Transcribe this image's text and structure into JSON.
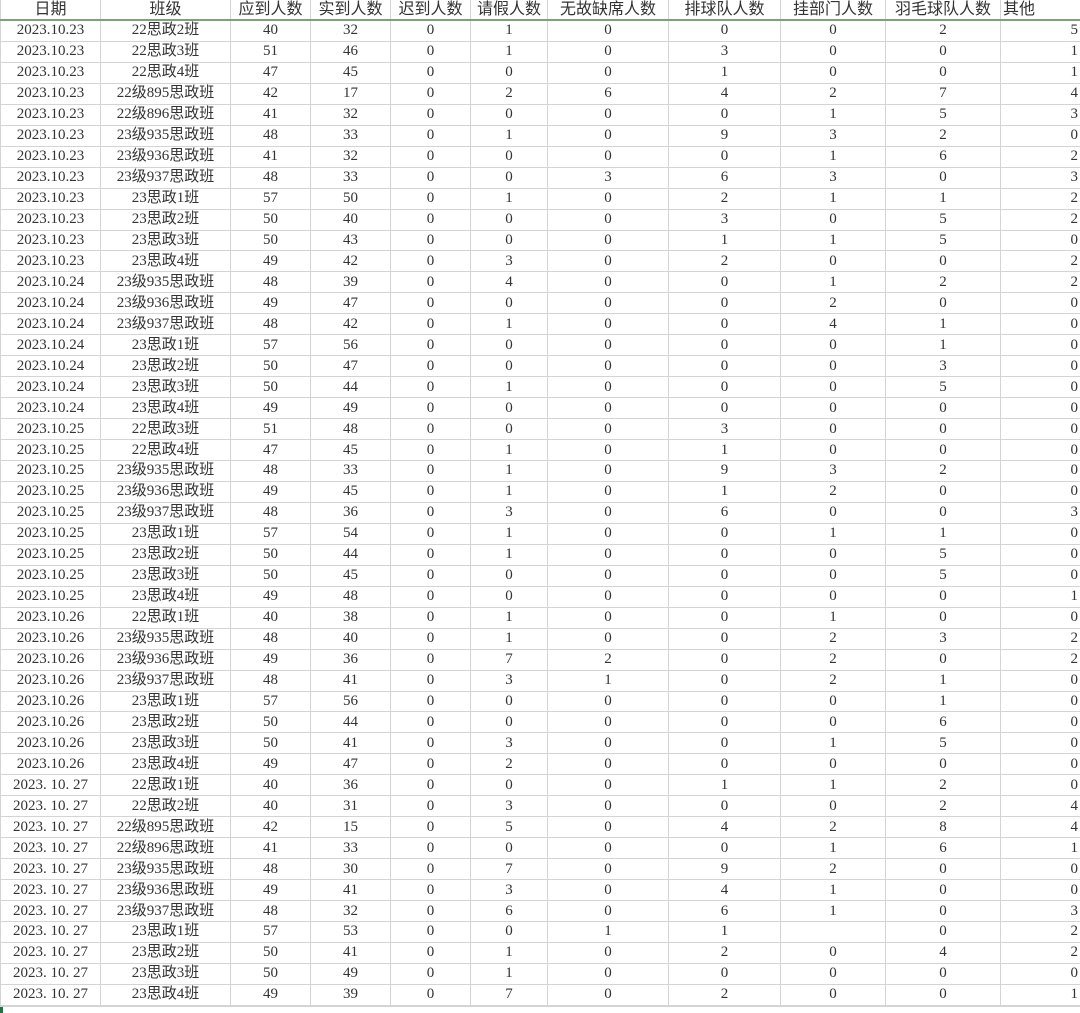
{
  "sheet": {
    "columns": [
      "日期",
      "班级",
      "应到人数",
      "实到人数",
      "迟到人数",
      "请假人数",
      "无故缺席人数",
      "排球队人数",
      "挂部门人数",
      "羽毛球队人数",
      "其他"
    ],
    "rows": [
      [
        "2023.10.23",
        "22思政2班",
        "40",
        "32",
        "0",
        "1",
        "0",
        "0",
        "0",
        "2",
        "5"
      ],
      [
        "2023.10.23",
        "22思政3班",
        "51",
        "46",
        "0",
        "1",
        "0",
        "3",
        "0",
        "0",
        "1"
      ],
      [
        "2023.10.23",
        "22思政4班",
        "47",
        "45",
        "0",
        "0",
        "0",
        "1",
        "0",
        "0",
        "1"
      ],
      [
        "2023.10.23",
        "22级895思政班",
        "42",
        "17",
        "0",
        "2",
        "6",
        "4",
        "2",
        "7",
        "4"
      ],
      [
        "2023.10.23",
        "22级896思政班",
        "41",
        "32",
        "0",
        "0",
        "0",
        "0",
        "1",
        "5",
        "3"
      ],
      [
        "2023.10.23",
        "23级935思政班",
        "48",
        "33",
        "0",
        "1",
        "0",
        "9",
        "3",
        "2",
        "0"
      ],
      [
        "2023.10.23",
        "23级936思政班",
        "41",
        "32",
        "0",
        "0",
        "0",
        "0",
        "1",
        "6",
        "2"
      ],
      [
        "2023.10.23",
        "23级937思政班",
        "48",
        "33",
        "0",
        "0",
        "3",
        "6",
        "3",
        "0",
        "3"
      ],
      [
        "2023.10.23",
        "23思政1班",
        "57",
        "50",
        "0",
        "1",
        "0",
        "2",
        "1",
        "1",
        "2"
      ],
      [
        "2023.10.23",
        "23思政2班",
        "50",
        "40",
        "0",
        "0",
        "0",
        "3",
        "0",
        "5",
        "2"
      ],
      [
        "2023.10.23",
        "23思政3班",
        "50",
        "43",
        "0",
        "0",
        "0",
        "1",
        "1",
        "5",
        "0"
      ],
      [
        "2023.10.23",
        "23思政4班",
        "49",
        "42",
        "0",
        "3",
        "0",
        "2",
        "0",
        "0",
        "2"
      ],
      [
        "2023.10.24",
        "23级935思政班",
        "48",
        "39",
        "0",
        "4",
        "0",
        "0",
        "1",
        "2",
        "2"
      ],
      [
        "2023.10.24",
        "23级936思政班",
        "49",
        "47",
        "0",
        "0",
        "0",
        "0",
        "2",
        "0",
        "0"
      ],
      [
        "2023.10.24",
        "23级937思政班",
        "48",
        "42",
        "0",
        "1",
        "0",
        "0",
        "4",
        "1",
        "0"
      ],
      [
        "2023.10.24",
        "23思政1班",
        "57",
        "56",
        "0",
        "0",
        "0",
        "0",
        "0",
        "1",
        "0"
      ],
      [
        "2023.10.24",
        "23思政2班",
        "50",
        "47",
        "0",
        "0",
        "0",
        "0",
        "0",
        "3",
        "0"
      ],
      [
        "2023.10.24",
        "23思政3班",
        "50",
        "44",
        "0",
        "1",
        "0",
        "0",
        "0",
        "5",
        "0"
      ],
      [
        "2023.10.24",
        "23思政4班",
        "49",
        "49",
        "0",
        "0",
        "0",
        "0",
        "0",
        "0",
        "0"
      ],
      [
        "2023.10.25",
        "22思政3班",
        "51",
        "48",
        "0",
        "0",
        "0",
        "3",
        "0",
        "0",
        "0"
      ],
      [
        "2023.10.25",
        "22思政4班",
        "47",
        "45",
        "0",
        "1",
        "0",
        "1",
        "0",
        "0",
        "0"
      ],
      [
        "2023.10.25",
        "23级935思政班",
        "48",
        "33",
        "0",
        "1",
        "0",
        "9",
        "3",
        "2",
        "0"
      ],
      [
        "2023.10.25",
        "23级936思政班",
        "49",
        "45",
        "0",
        "1",
        "0",
        "1",
        "2",
        "0",
        "0"
      ],
      [
        "2023.10.25",
        "23级937思政班",
        "48",
        "36",
        "0",
        "3",
        "0",
        "6",
        "0",
        "0",
        "3"
      ],
      [
        "2023.10.25",
        "23思政1班",
        "57",
        "54",
        "0",
        "1",
        "0",
        "0",
        "1",
        "1",
        "0"
      ],
      [
        "2023.10.25",
        "23思政2班",
        "50",
        "44",
        "0",
        "1",
        "0",
        "0",
        "0",
        "5",
        "0"
      ],
      [
        "2023.10.25",
        "23思政3班",
        "50",
        "45",
        "0",
        "0",
        "0",
        "0",
        "0",
        "5",
        "0"
      ],
      [
        "2023.10.25",
        "23思政4班",
        "49",
        "48",
        "0",
        "0",
        "0",
        "0",
        "0",
        "0",
        "1"
      ],
      [
        "2023.10.26",
        "22思政1班",
        "40",
        "38",
        "0",
        "1",
        "0",
        "0",
        "1",
        "0",
        "0"
      ],
      [
        "2023.10.26",
        "23级935思政班",
        "48",
        "40",
        "0",
        "1",
        "0",
        "0",
        "2",
        "3",
        "2"
      ],
      [
        "2023.10.26",
        "23级936思政班",
        "49",
        "36",
        "0",
        "7",
        "2",
        "0",
        "2",
        "0",
        "2"
      ],
      [
        "2023.10.26",
        "23级937思政班",
        "48",
        "41",
        "0",
        "3",
        "1",
        "0",
        "2",
        "1",
        "0"
      ],
      [
        "2023.10.26",
        "23思政1班",
        "57",
        "56",
        "0",
        "0",
        "0",
        "0",
        "0",
        "1",
        "0"
      ],
      [
        "2023.10.26",
        "23思政2班",
        "50",
        "44",
        "0",
        "0",
        "0",
        "0",
        "0",
        "6",
        "0"
      ],
      [
        "2023.10.26",
        "23思政3班",
        "50",
        "41",
        "0",
        "3",
        "0",
        "0",
        "1",
        "5",
        "0"
      ],
      [
        "2023.10.26",
        "23思政4班",
        "49",
        "47",
        "0",
        "2",
        "0",
        "0",
        "0",
        "0",
        "0"
      ],
      [
        "2023. 10. 27",
        "22思政1班",
        "40",
        "36",
        "0",
        "0",
        "0",
        "1",
        "1",
        "2",
        "0"
      ],
      [
        "2023. 10. 27",
        "22思政2班",
        "40",
        "31",
        "0",
        "3",
        "0",
        "0",
        "0",
        "2",
        "4"
      ],
      [
        "2023. 10. 27",
        "22级895思政班",
        "42",
        "15",
        "0",
        "5",
        "0",
        "4",
        "2",
        "8",
        "4"
      ],
      [
        "2023. 10. 27",
        "22级896思政班",
        "41",
        "33",
        "0",
        "0",
        "0",
        "0",
        "1",
        "6",
        "1"
      ],
      [
        "2023. 10. 27",
        "23级935思政班",
        "48",
        "30",
        "0",
        "7",
        "0",
        "9",
        "2",
        "0",
        "0"
      ],
      [
        "2023. 10. 27",
        "23级936思政班",
        "49",
        "41",
        "0",
        "3",
        "0",
        "4",
        "1",
        "0",
        "0"
      ],
      [
        "2023. 10. 27",
        "23级937思政班",
        "48",
        "32",
        "0",
        "6",
        "0",
        "6",
        "1",
        "0",
        "3"
      ],
      [
        "2023. 10. 27",
        "23思政1班",
        "57",
        "53",
        "0",
        "0",
        "1",
        "1",
        "",
        "0",
        "2"
      ],
      [
        "2023. 10. 27",
        "23思政2班",
        "50",
        "41",
        "0",
        "1",
        "0",
        "2",
        "0",
        "4",
        "2"
      ],
      [
        "2023. 10. 27",
        "23思政3班",
        "50",
        "49",
        "0",
        "1",
        "0",
        "0",
        "0",
        "0",
        "0"
      ],
      [
        "2023. 10. 27",
        "23思政4班",
        "49",
        "39",
        "0",
        "7",
        "0",
        "2",
        "0",
        "0",
        "1"
      ]
    ]
  }
}
